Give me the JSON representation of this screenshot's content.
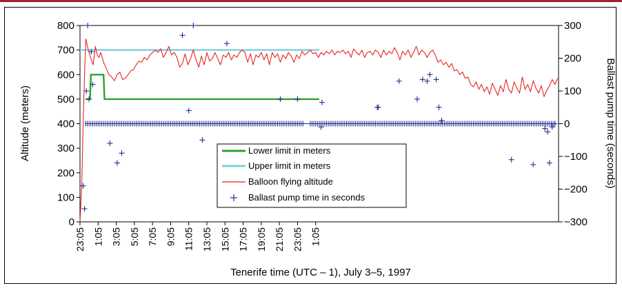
{
  "chart_data": {
    "type": "line",
    "xlabel": "Tenerife time (UTC – 1), July 3–5, 1997",
    "ylabel_left": "Altitude (meters)",
    "ylabel_right": "Ballast pump time (seconds)",
    "xlim": [
      0,
      52.8
    ],
    "ylim_left": [
      0,
      800
    ],
    "ylim_right": [
      -300,
      300
    ],
    "x_ticks": [
      0,
      2,
      4,
      6,
      8,
      10,
      12,
      14,
      16,
      18,
      20,
      22,
      24,
      26
    ],
    "x_tick_labels": [
      "23:05",
      "1:05",
      "3:05",
      "5:05",
      "7:05",
      "9:05",
      "11:05",
      "13:05",
      "15:05",
      "17:05",
      "19:05",
      "21:05",
      "23:05",
      "1:05"
    ],
    "y_ticks_left": [
      0,
      100,
      200,
      300,
      400,
      500,
      600,
      700,
      800
    ],
    "y_ticks_right": [
      -300,
      -200,
      -100,
      0,
      100,
      200,
      300
    ],
    "y_tick_labels_right": [
      "−300",
      "−200",
      "−100",
      "0",
      "100",
      "200",
      "300"
    ],
    "legend_position": "center",
    "series": [
      {
        "name": "Lower limit in meters",
        "color": "#2ca02c",
        "points": [
          [
            0.6,
            500
          ],
          [
            1.1,
            500
          ],
          [
            1.2,
            600
          ],
          [
            2.6,
            600
          ],
          [
            2.7,
            500
          ],
          [
            26.4,
            500
          ]
        ]
      },
      {
        "name": "Upper limit in meters",
        "color": "#7ccfdc",
        "points": [
          [
            0,
            700
          ],
          [
            26.4,
            700
          ]
        ]
      },
      {
        "name": "Balloon flying altitude",
        "color": "#e8231f",
        "points": [
          [
            0,
            0
          ],
          [
            0.2,
            150
          ],
          [
            0.35,
            400
          ],
          [
            0.5,
            600
          ],
          [
            0.65,
            745
          ],
          [
            0.8,
            720
          ],
          [
            1.0,
            690
          ],
          [
            1.2,
            665
          ],
          [
            1.45,
            640
          ],
          [
            1.7,
            715
          ],
          [
            1.9,
            680
          ],
          [
            2.1,
            670
          ],
          [
            2.3,
            690
          ],
          [
            2.6,
            650
          ],
          [
            2.9,
            625
          ],
          [
            3.2,
            600
          ],
          [
            3.5,
            590
          ],
          [
            3.8,
            575
          ],
          [
            4.1,
            600
          ],
          [
            4.4,
            610
          ],
          [
            4.7,
            580
          ],
          [
            5.0,
            585
          ],
          [
            5.3,
            600
          ],
          [
            5.6,
            615
          ],
          [
            5.9,
            620
          ],
          [
            6.2,
            640
          ],
          [
            6.5,
            655
          ],
          [
            6.8,
            650
          ],
          [
            7.1,
            670
          ],
          [
            7.4,
            660
          ],
          [
            7.7,
            680
          ],
          [
            8.0,
            690
          ],
          [
            8.3,
            700
          ],
          [
            8.6,
            690
          ],
          [
            8.9,
            705
          ],
          [
            9.2,
            670
          ],
          [
            9.5,
            690
          ],
          [
            9.8,
            715
          ],
          [
            10.1,
            680
          ],
          [
            10.4,
            690
          ],
          [
            10.7,
            670
          ],
          [
            11.0,
            630
          ],
          [
            11.3,
            645
          ],
          [
            11.6,
            685
          ],
          [
            11.9,
            640
          ],
          [
            12.2,
            665
          ],
          [
            12.5,
            700
          ],
          [
            12.8,
            660
          ],
          [
            13.1,
            630
          ],
          [
            13.4,
            675
          ],
          [
            13.7,
            640
          ],
          [
            14.0,
            690
          ],
          [
            14.3,
            655
          ],
          [
            14.6,
            665
          ],
          [
            14.9,
            690
          ],
          [
            15.2,
            665
          ],
          [
            15.5,
            640
          ],
          [
            15.8,
            680
          ],
          [
            16.1,
            670
          ],
          [
            16.4,
            690
          ],
          [
            16.7,
            660
          ],
          [
            17.0,
            680
          ],
          [
            17.3,
            670
          ],
          [
            17.6,
            690
          ],
          [
            17.9,
            700
          ],
          [
            18.2,
            690
          ],
          [
            18.5,
            650
          ],
          [
            18.8,
            685
          ],
          [
            19.1,
            640
          ],
          [
            19.4,
            680
          ],
          [
            19.7,
            670
          ],
          [
            20.0,
            690
          ],
          [
            20.3,
            660
          ],
          [
            20.6,
            685
          ],
          [
            20.9,
            640
          ],
          [
            21.2,
            690
          ],
          [
            21.5,
            670
          ],
          [
            21.8,
            685
          ],
          [
            22.1,
            650
          ],
          [
            22.4,
            680
          ],
          [
            22.7,
            665
          ],
          [
            23.0,
            690
          ],
          [
            23.3,
            675
          ],
          [
            23.6,
            650
          ],
          [
            23.9,
            680
          ],
          [
            24.2,
            665
          ],
          [
            24.5,
            695
          ],
          [
            24.8,
            680
          ],
          [
            25.1,
            690
          ],
          [
            25.4,
            700
          ],
          [
            25.7,
            685
          ],
          [
            26.0,
            690
          ],
          [
            26.3,
            670
          ],
          [
            26.6,
            690
          ],
          [
            26.9,
            680
          ],
          [
            27.2,
            695
          ],
          [
            27.5,
            685
          ],
          [
            27.8,
            700
          ],
          [
            28.1,
            680
          ],
          [
            28.4,
            695
          ],
          [
            28.7,
            690
          ],
          [
            29.0,
            700
          ],
          [
            29.3,
            685
          ],
          [
            29.6,
            695
          ],
          [
            29.9,
            670
          ],
          [
            30.2,
            705
          ],
          [
            30.5,
            690
          ],
          [
            30.8,
            680
          ],
          [
            31.1,
            700
          ],
          [
            31.4,
            670
          ],
          [
            31.7,
            690
          ],
          [
            32.0,
            695
          ],
          [
            32.3,
            680
          ],
          [
            32.6,
            700
          ],
          [
            32.9,
            690
          ],
          [
            33.2,
            670
          ],
          [
            33.5,
            700
          ],
          [
            33.8,
            680
          ],
          [
            34.1,
            695
          ],
          [
            34.4,
            685
          ],
          [
            34.7,
            710
          ],
          [
            35.0,
            690
          ],
          [
            35.3,
            660
          ],
          [
            35.6,
            695
          ],
          [
            35.9,
            680
          ],
          [
            36.2,
            700
          ],
          [
            36.5,
            670
          ],
          [
            36.8,
            690
          ],
          [
            37.1,
            715
          ],
          [
            37.4,
            680
          ],
          [
            37.7,
            700
          ],
          [
            38.0,
            690
          ],
          [
            38.3,
            670
          ],
          [
            38.6,
            690
          ],
          [
            38.9,
            700
          ],
          [
            39.2,
            680
          ],
          [
            39.5,
            650
          ],
          [
            39.8,
            660
          ],
          [
            40.1,
            640
          ],
          [
            40.4,
            650
          ],
          [
            40.7,
            630
          ],
          [
            41.0,
            645
          ],
          [
            41.3,
            615
          ],
          [
            41.6,
            620
          ],
          [
            41.9,
            600
          ],
          [
            42.2,
            610
          ],
          [
            42.5,
            585
          ],
          [
            42.8,
            590
          ],
          [
            43.1,
            560
          ],
          [
            43.4,
            550
          ],
          [
            43.7,
            570
          ],
          [
            44.0,
            540
          ],
          [
            44.3,
            560
          ],
          [
            44.6,
            530
          ],
          [
            44.9,
            550
          ],
          [
            45.2,
            520
          ],
          [
            45.5,
            565
          ],
          [
            45.8,
            540
          ],
          [
            46.1,
            515
          ],
          [
            46.4,
            555
          ],
          [
            46.7,
            530
          ],
          [
            47.0,
            580
          ],
          [
            47.3,
            540
          ],
          [
            47.6,
            525
          ],
          [
            47.9,
            570
          ],
          [
            48.2,
            545
          ],
          [
            48.5,
            525
          ],
          [
            48.8,
            590
          ],
          [
            49.1,
            540
          ],
          [
            49.4,
            560
          ],
          [
            49.7,
            530
          ],
          [
            50.0,
            575
          ],
          [
            50.3,
            545
          ],
          [
            50.6,
            525
          ],
          [
            50.9,
            555
          ],
          [
            51.2,
            510
          ],
          [
            51.5,
            535
          ],
          [
            51.8,
            555
          ],
          [
            52.1,
            580
          ],
          [
            52.4,
            560
          ],
          [
            52.7,
            585
          ]
        ]
      },
      {
        "name": "Ballast pump time in seconds",
        "color": "#1f2a8c",
        "marker": "+",
        "axis": "right",
        "points": [
          [
            0.35,
            -190
          ],
          [
            0.5,
            -260
          ],
          [
            0.7,
            100
          ],
          [
            0.85,
            300
          ],
          [
            1.0,
            75
          ],
          [
            1.25,
            220
          ],
          [
            1.4,
            120
          ],
          [
            3.3,
            -60
          ],
          [
            4.1,
            -120
          ],
          [
            4.6,
            -90
          ],
          [
            11.3,
            270
          ],
          [
            12.0,
            40
          ],
          [
            12.5,
            300
          ],
          [
            13.5,
            -50
          ],
          [
            16.2,
            245
          ],
          [
            22.1,
            75
          ],
          [
            24.0,
            75
          ],
          [
            26.6,
            -10
          ],
          [
            26.7,
            65
          ],
          [
            32.8,
            50
          ],
          [
            32.9,
            50
          ],
          [
            35.2,
            130
          ],
          [
            37.2,
            75
          ],
          [
            37.8,
            135
          ],
          [
            38.3,
            130
          ],
          [
            38.6,
            150
          ],
          [
            39.3,
            135
          ],
          [
            39.6,
            50
          ],
          [
            39.9,
            10
          ],
          [
            47.6,
            -110
          ],
          [
            50.0,
            -125
          ],
          [
            51.3,
            -15
          ],
          [
            51.6,
            -25
          ],
          [
            51.8,
            -120
          ],
          [
            52.1,
            -10
          ],
          [
            52.4,
            0
          ]
        ],
        "baseline_value": 0
      }
    ]
  }
}
